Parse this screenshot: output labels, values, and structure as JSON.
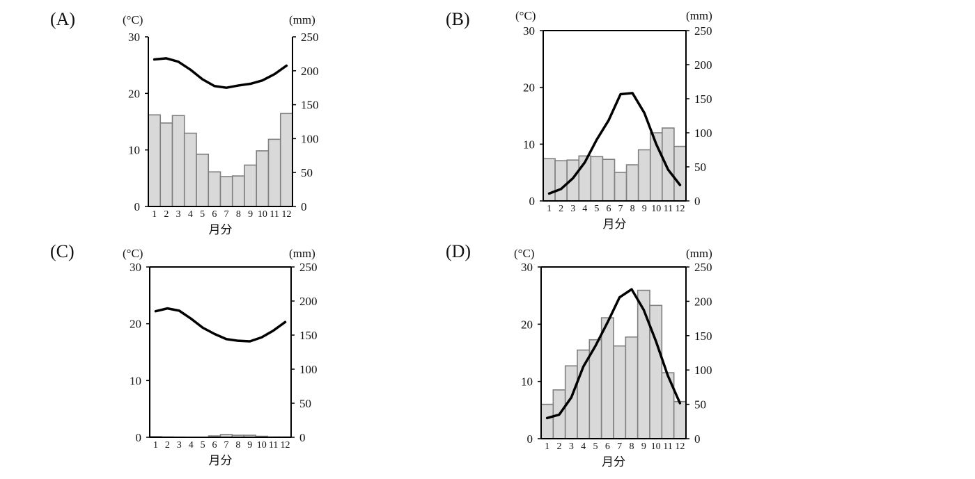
{
  "chart_data": [
    {
      "type": "bar",
      "panel": "(A)",
      "months": [
        "1",
        "2",
        "3",
        "4",
        "5",
        "6",
        "7",
        "8",
        "9",
        "10",
        "11",
        "12"
      ],
      "xlabel": "月分",
      "left_unit": "(°C)",
      "right_unit": "(mm)",
      "y_left": [
        0,
        30
      ],
      "y_right": [
        0,
        250
      ],
      "left_ticks": [
        "0",
        "10",
        "20",
        "30"
      ],
      "right_ticks": [
        "0",
        "50",
        "100",
        "150",
        "200",
        "250"
      ],
      "precipitation": [
        135,
        123,
        134,
        108,
        77,
        51,
        44,
        45,
        61,
        82,
        99,
        137
      ],
      "temperature": [
        26.0,
        26.2,
        25.6,
        24.2,
        22.5,
        21.3,
        21.0,
        21.4,
        21.7,
        22.3,
        23.4,
        24.9
      ],
      "box": {
        "x0": 213,
        "x1": 420,
        "y_top": 53,
        "y_bottom": 297
      },
      "frame_top": false
    },
    {
      "type": "bar",
      "panel": "(B)",
      "months": [
        "1",
        "2",
        "3",
        "4",
        "5",
        "6",
        "7",
        "8",
        "9",
        "10",
        "11",
        "12"
      ],
      "xlabel": "月分",
      "left_unit": "(°C)",
      "right_unit": "(mm)",
      "y_left": [
        0,
        30
      ],
      "y_right": [
        0,
        250
      ],
      "left_ticks": [
        "0",
        "10",
        "20",
        "30"
      ],
      "right_ticks": [
        "0",
        "50",
        "100",
        "150",
        "200",
        "250"
      ],
      "precipitation": [
        62,
        59,
        60,
        66,
        65,
        61,
        42,
        53,
        75,
        100,
        107,
        80
      ],
      "temperature": [
        1.3,
        2.1,
        4.0,
        6.8,
        10.8,
        14.2,
        18.8,
        19.0,
        15.5,
        10.0,
        5.5,
        2.8
      ],
      "box": {
        "x0": 780,
        "x1": 985,
        "y_top": 44,
        "y_bottom": 289
      },
      "frame_top": true
    },
    {
      "type": "bar",
      "panel": "(C)",
      "months": [
        "1",
        "2",
        "3",
        "4",
        "5",
        "6",
        "7",
        "8",
        "9",
        "10",
        "11",
        "12"
      ],
      "xlabel": "月分",
      "left_unit": "(°C)",
      "right_unit": "(mm)",
      "y_left": [
        0,
        30
      ],
      "y_right": [
        0,
        250
      ],
      "left_ticks": [
        "0",
        "10",
        "20",
        "30"
      ],
      "right_ticks": [
        "0",
        "50",
        "100",
        "150",
        "200",
        "250"
      ],
      "precipitation": [
        1,
        0.5,
        0.3,
        0.2,
        0.2,
        2,
        4,
        3,
        3,
        1.5,
        0.5,
        0.5
      ],
      "temperature": [
        22.2,
        22.7,
        22.3,
        20.9,
        19.3,
        18.2,
        17.3,
        17.0,
        16.9,
        17.6,
        18.8,
        20.3
      ],
      "box": {
        "x0": 215,
        "x1": 418,
        "y_top": 384,
        "y_bottom": 629
      },
      "frame_top": true
    },
    {
      "type": "bar",
      "panel": "(D)",
      "months": [
        "1",
        "2",
        "3",
        "4",
        "5",
        "6",
        "7",
        "8",
        "9",
        "10",
        "11",
        "12"
      ],
      "xlabel": "月分",
      "left_unit": "(°C)",
      "right_unit": "(mm)",
      "y_left": [
        0,
        30
      ],
      "y_right": [
        0,
        250
      ],
      "left_ticks": [
        "0",
        "10",
        "20",
        "30"
      ],
      "right_ticks": [
        "0",
        "50",
        "100",
        "150",
        "200",
        "250"
      ],
      "precipitation": [
        50,
        71,
        106,
        129,
        144,
        176,
        135,
        148,
        216,
        194,
        96,
        54
      ],
      "temperature": [
        3.6,
        4.2,
        7.2,
        12.6,
        16.2,
        20.3,
        24.7,
        26.1,
        22.5,
        17.1,
        11.0,
        6.2
      ],
      "box": {
        "x0": 777,
        "x1": 985,
        "y_top": 384,
        "y_bottom": 631
      },
      "frame_top": true
    }
  ]
}
